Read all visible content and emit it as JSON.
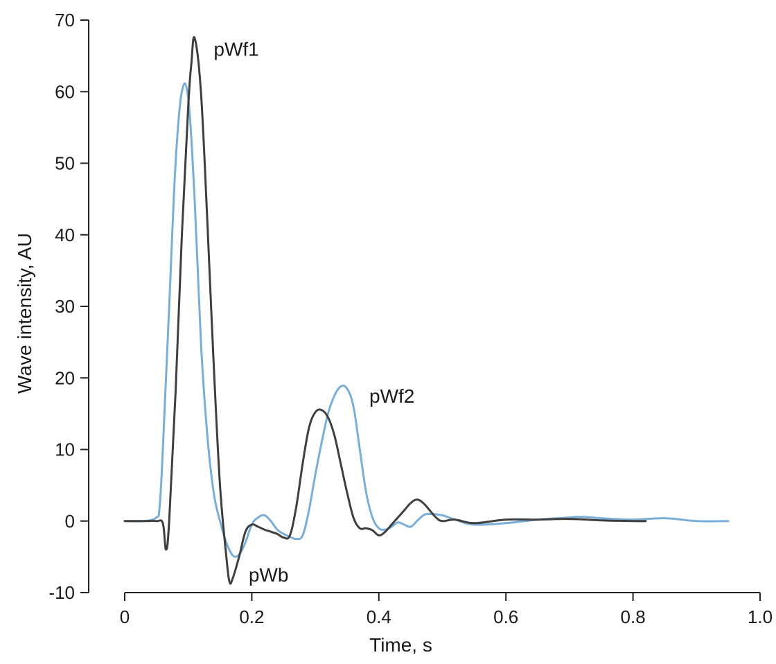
{
  "chart_data": {
    "type": "line",
    "title": "",
    "xlabel": "Time, s",
    "ylabel": "Wave intensity, AU",
    "xlim": [
      0,
      1.0
    ],
    "ylim": [
      -10,
      70
    ],
    "x_ticks": [
      "0",
      "0.2",
      "0.4",
      "0.6",
      "0.8",
      "1.0"
    ],
    "y_ticks": [
      "-10",
      "0",
      "10",
      "20",
      "30",
      "40",
      "50",
      "60",
      "70"
    ],
    "grid": false,
    "legend": "none",
    "series": [
      {
        "color": "#7aaed6",
        "x": [
          0,
          0.03,
          0.05,
          0.055,
          0.06,
          0.07,
          0.08,
          0.09,
          0.1,
          0.11,
          0.12,
          0.13,
          0.14,
          0.15,
          0.16,
          0.17,
          0.18,
          0.19,
          0.2,
          0.21,
          0.22,
          0.23,
          0.24,
          0.25,
          0.26,
          0.27,
          0.28,
          0.29,
          0.3,
          0.31,
          0.32,
          0.33,
          0.34,
          0.35,
          0.36,
          0.37,
          0.38,
          0.39,
          0.4,
          0.41,
          0.42,
          0.43,
          0.44,
          0.45,
          0.46,
          0.47,
          0.48,
          0.5,
          0.52,
          0.55,
          0.6,
          0.65,
          0.7,
          0.72,
          0.75,
          0.8,
          0.85,
          0.9,
          0.95
        ],
        "y": [
          0,
          0,
          0.5,
          2,
          10,
          30,
          50,
          60,
          59,
          45,
          25,
          12,
          4,
          0,
          -3,
          -4.8,
          -4.7,
          -3,
          -0.5,
          0.5,
          0.8,
          0,
          -1.2,
          -1.8,
          -2.2,
          -2.5,
          -2,
          1.5,
          6.5,
          11,
          15,
          17.5,
          18.8,
          18.5,
          16,
          10,
          4,
          0.5,
          -1,
          -1.2,
          -0.8,
          -0.2,
          -0.5,
          -0.8,
          0,
          0.8,
          1,
          0.8,
          0.2,
          -0.5,
          -0.3,
          0.2,
          0.5,
          0.6,
          0.4,
          0.2,
          0.4,
          0,
          0
        ]
      },
      {
        "color": "#3f3f3f",
        "x": [
          0,
          0.03,
          0.05,
          0.06,
          0.065,
          0.07,
          0.08,
          0.09,
          0.1,
          0.105,
          0.11,
          0.12,
          0.13,
          0.14,
          0.15,
          0.16,
          0.165,
          0.17,
          0.18,
          0.19,
          0.2,
          0.21,
          0.22,
          0.23,
          0.24,
          0.25,
          0.26,
          0.27,
          0.28,
          0.29,
          0.3,
          0.31,
          0.32,
          0.33,
          0.34,
          0.35,
          0.36,
          0.37,
          0.38,
          0.39,
          0.4,
          0.41,
          0.42,
          0.43,
          0.44,
          0.45,
          0.46,
          0.47,
          0.48,
          0.49,
          0.5,
          0.52,
          0.55,
          0.6,
          0.65,
          0.7,
          0.75,
          0.8,
          0.82
        ],
        "y": [
          0,
          0,
          0,
          -0.3,
          -4,
          0,
          18,
          40,
          58,
          64,
          67.5,
          60,
          42,
          22,
          5,
          -5,
          -8.5,
          -8,
          -5,
          -1.5,
          -0.5,
          -0.8,
          -1.2,
          -1.5,
          -1.8,
          -2.3,
          -2,
          2,
          8,
          13,
          15.2,
          15.5,
          14.5,
          12,
          8,
          4,
          0.5,
          -1,
          -1,
          -1.3,
          -2,
          -1.5,
          -0.5,
          0.5,
          1.5,
          2.5,
          3,
          2.5,
          1.5,
          0.5,
          0,
          0.2,
          -0.3,
          0.2,
          0.2,
          0.3,
          0.1,
          0,
          0
        ]
      }
    ],
    "annotations": [
      {
        "text": "pWf1",
        "x": 0.14,
        "y": 66
      },
      {
        "text": "pWf2",
        "x": 0.385,
        "y": 17.5
      },
      {
        "text": "pWb",
        "x": 0.195,
        "y": -7.5
      }
    ]
  }
}
